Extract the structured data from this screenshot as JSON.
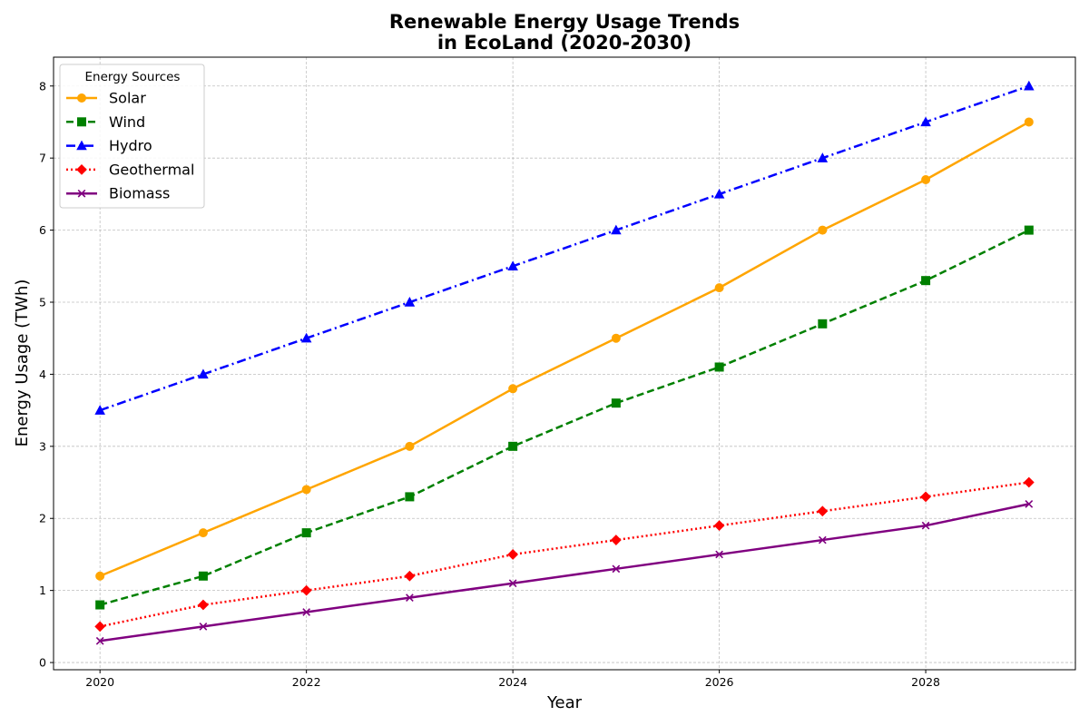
{
  "chart_data": {
    "type": "line",
    "title": [
      "Renewable Energy Usage Trends",
      "in EcoLand (2020-2030)"
    ],
    "xlabel": "Year",
    "ylabel": "Energy Usage (TWh)",
    "x": [
      2020,
      2021,
      2022,
      2023,
      2024,
      2025,
      2026,
      2027,
      2028,
      2029
    ],
    "xlim": [
      2019.55,
      2029.45
    ],
    "ylim": [
      -0.1,
      8.4
    ],
    "xticks": [
      2020,
      2022,
      2024,
      2026,
      2028
    ],
    "yticks": [
      0,
      1,
      2,
      3,
      4,
      5,
      6,
      7,
      8
    ],
    "grid": true,
    "legend": {
      "title": "Energy Sources",
      "placement": "upper-left"
    },
    "series": [
      {
        "name": "Solar",
        "color": "#FFA500",
        "line_style": "solid",
        "marker": "circle",
        "values": [
          1.2,
          1.8,
          2.4,
          3.0,
          3.8,
          4.5,
          5.2,
          6.0,
          6.7,
          7.5
        ]
      },
      {
        "name": "Wind",
        "color": "#008000",
        "line_style": "dashed",
        "marker": "square",
        "values": [
          0.8,
          1.2,
          1.8,
          2.3,
          3.0,
          3.6,
          4.1,
          4.7,
          5.3,
          6.0
        ]
      },
      {
        "name": "Hydro",
        "color": "#0000FF",
        "line_style": "dashdot",
        "marker": "triangle",
        "values": [
          3.5,
          4.0,
          4.5,
          5.0,
          5.5,
          6.0,
          6.5,
          7.0,
          7.5,
          8.0
        ]
      },
      {
        "name": "Geothermal",
        "color": "#FF0000",
        "line_style": "dotted",
        "marker": "diamond",
        "values": [
          0.5,
          0.8,
          1.0,
          1.2,
          1.5,
          1.7,
          1.9,
          2.1,
          2.3,
          2.5
        ]
      },
      {
        "name": "Biomass",
        "color": "#800080",
        "line_style": "solid",
        "marker": "x",
        "values": [
          0.3,
          0.5,
          0.7,
          0.9,
          1.1,
          1.3,
          1.5,
          1.7,
          1.9,
          2.2
        ]
      }
    ]
  }
}
